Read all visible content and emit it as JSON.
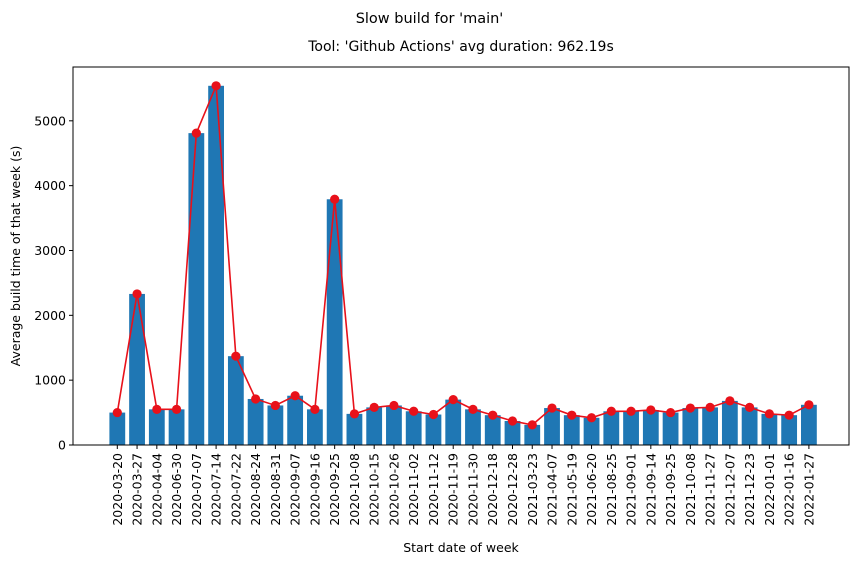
{
  "chart_data": {
    "type": "bar",
    "suptitle": "Slow build for 'main'",
    "title": "Tool: 'Github Actions' avg duration: 962.19s",
    "xlabel": "Start date of week",
    "ylabel": "Average build time of that week (s)",
    "ylim": [
      0,
      5830
    ],
    "yticks": [
      0,
      1000,
      2000,
      3000,
      4000,
      5000
    ],
    "grid": false,
    "categories": [
      "2020-03-20",
      "2020-03-27",
      "2020-04-04",
      "2020-06-30",
      "2020-07-07",
      "2020-07-14",
      "2020-07-22",
      "2020-08-24",
      "2020-08-31",
      "2020-09-07",
      "2020-09-16",
      "2020-09-25",
      "2020-10-08",
      "2020-10-15",
      "2020-10-26",
      "2020-11-02",
      "2020-11-12",
      "2020-11-19",
      "2020-11-30",
      "2020-12-18",
      "2020-12-28",
      "2021-03-23",
      "2021-04-07",
      "2021-05-19",
      "2021-06-20",
      "2021-08-25",
      "2021-09-01",
      "2021-09-14",
      "2021-09-25",
      "2021-10-08",
      "2021-11-27",
      "2021-12-07",
      "2021-12-23",
      "2022-01-01",
      "2022-01-16",
      "2022-01-27"
    ],
    "values": [
      500,
      2330,
      550,
      550,
      4810,
      5540,
      1370,
      710,
      610,
      760,
      550,
      3790,
      480,
      580,
      610,
      520,
      470,
      700,
      550,
      460,
      370,
      310,
      570,
      460,
      420,
      520,
      520,
      540,
      500,
      570,
      580,
      680,
      580,
      480,
      460,
      620
    ],
    "bar_color": "#1f77b4",
    "line_color": "#e8111a"
  }
}
